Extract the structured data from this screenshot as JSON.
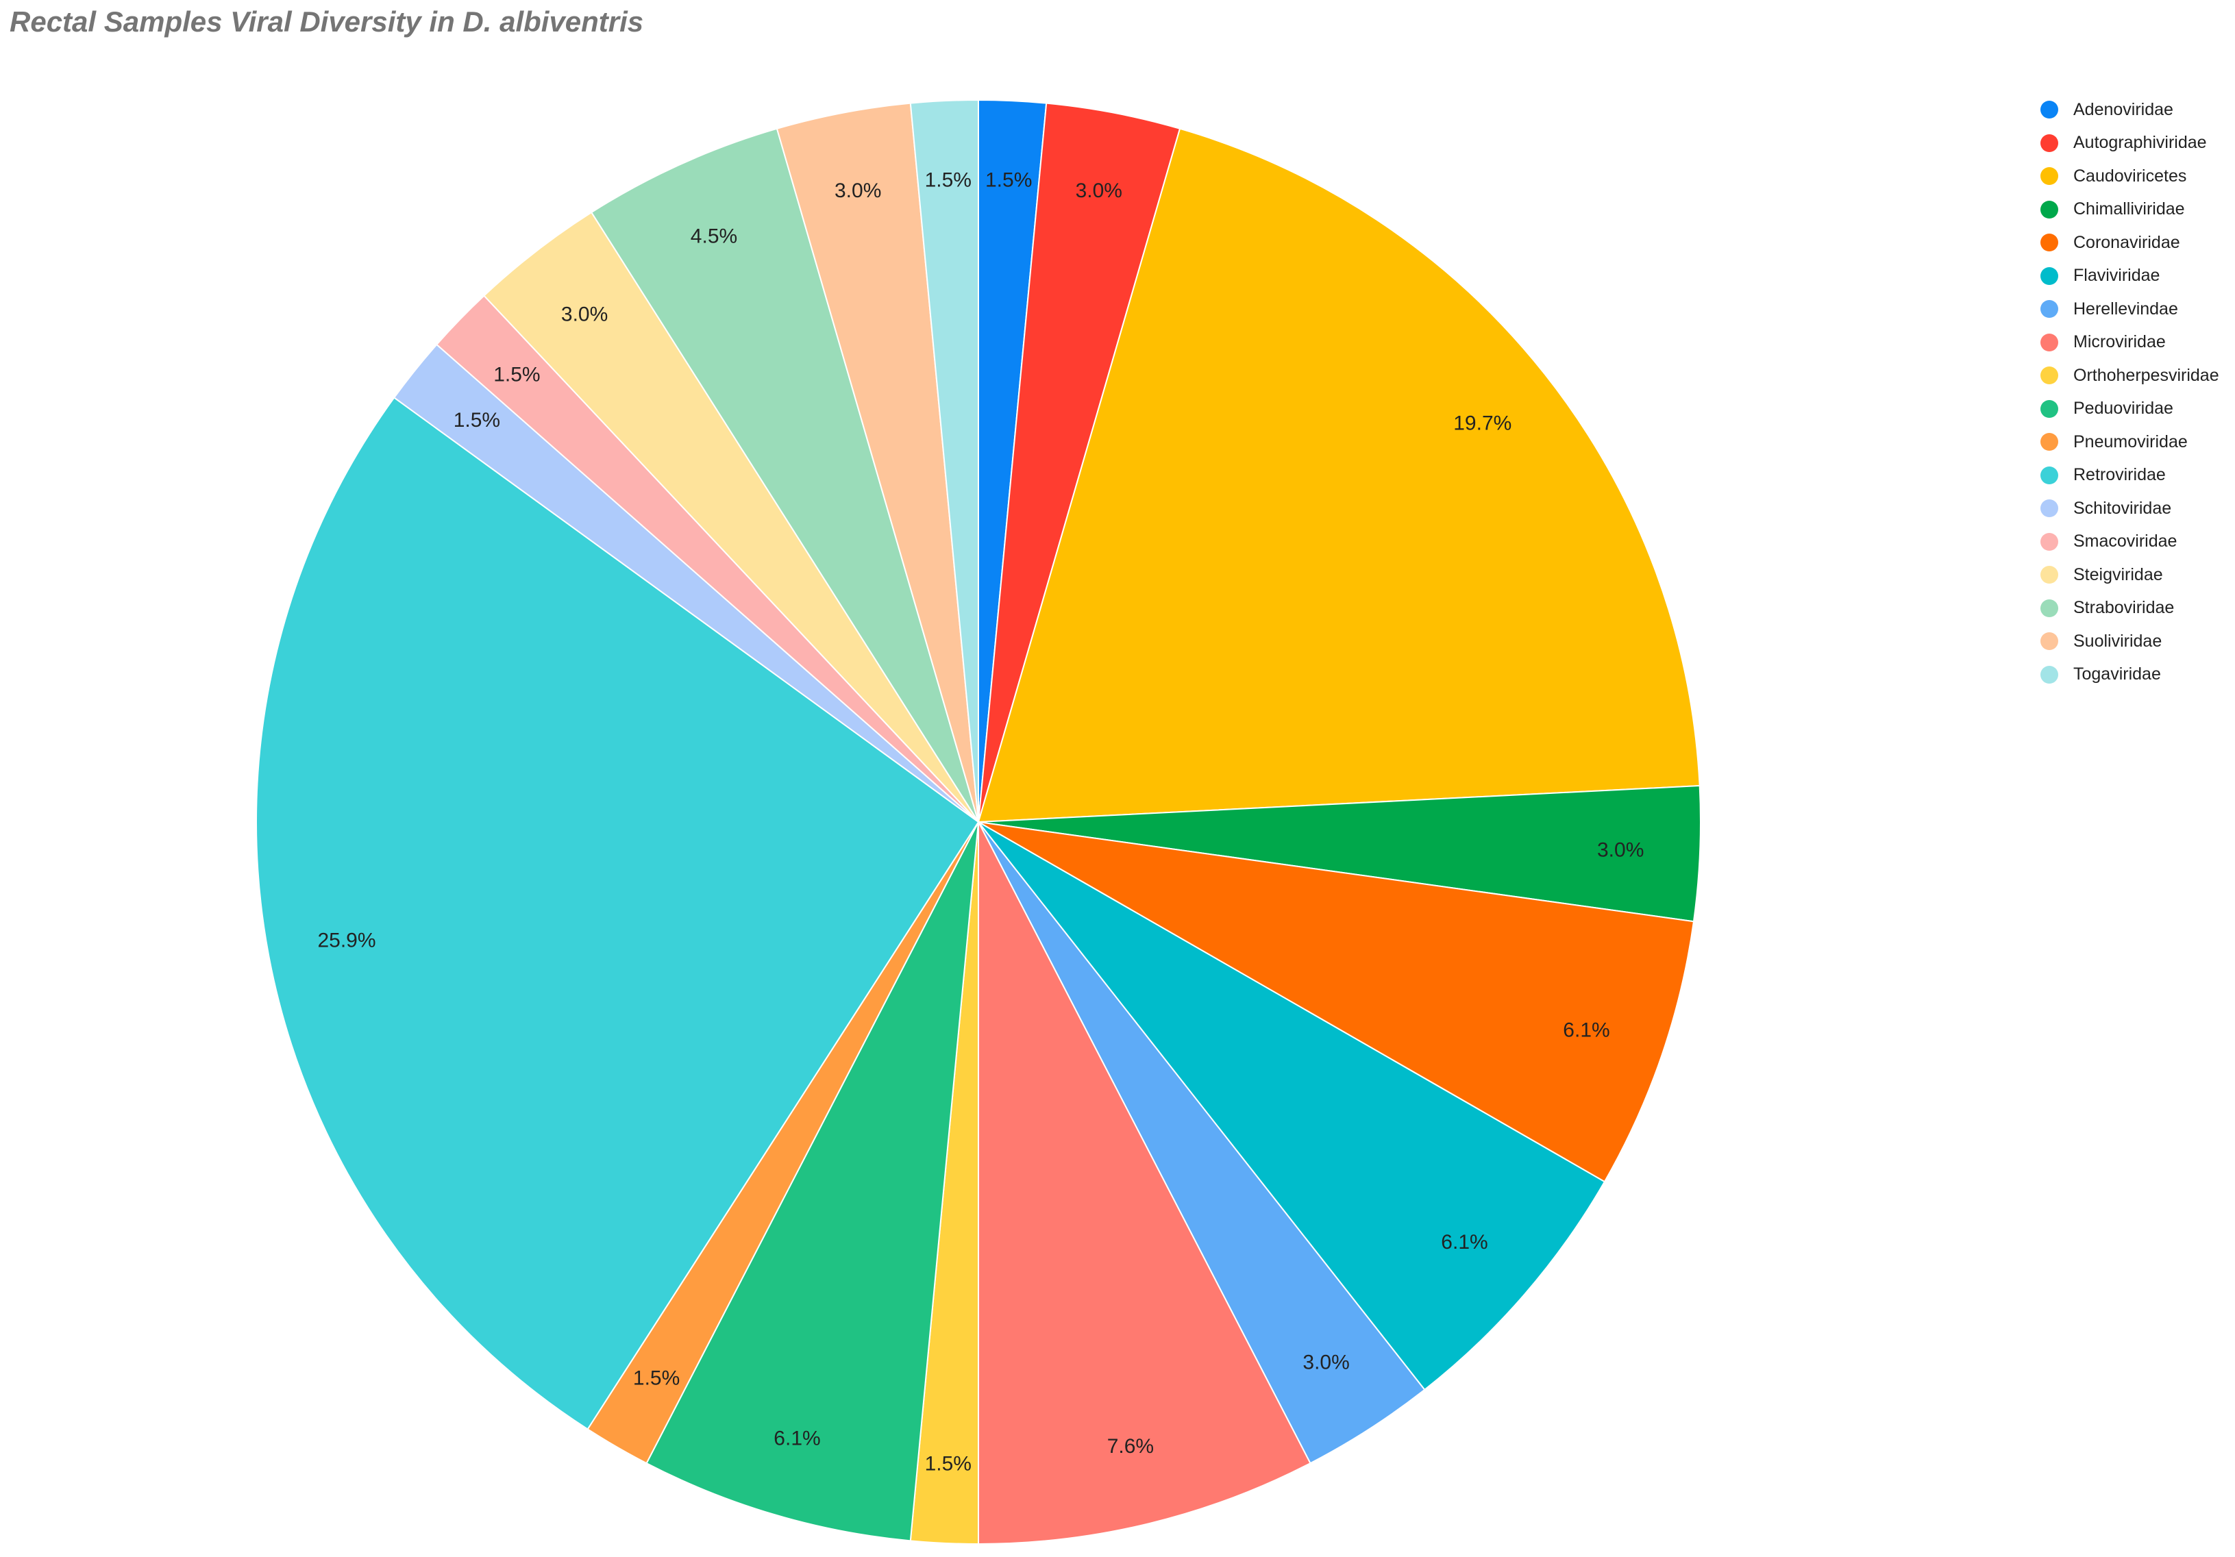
{
  "chart_data": {
    "type": "pie",
    "title": "Rectal Samples Viral Diversity in D. albiventris",
    "legend_position": "right",
    "slices": [
      {
        "label": "Adenoviridae",
        "value": 1.5,
        "color": "#0a84f5",
        "data_label": "1.5%"
      },
      {
        "label": "Autographiviridae",
        "value": 3.0,
        "color": "#ff3d30",
        "data_label": "3.0%"
      },
      {
        "label": "Caudoviricetes",
        "value": 19.7,
        "color": "#ffbf00",
        "data_label": "19.7%"
      },
      {
        "label": "Chimalliviridae",
        "value": 3.0,
        "color": "#00a84b",
        "data_label": "3.0%"
      },
      {
        "label": "Coronaviridae",
        "value": 6.1,
        "color": "#ff6d00",
        "data_label": "6.1%"
      },
      {
        "label": "Flaviviridae",
        "value": 6.1,
        "color": "#00bccb",
        "data_label": "6.1%"
      },
      {
        "label": "Herellevindae",
        "value": 3.0,
        "color": "#5eabf7",
        "data_label": "3.0%"
      },
      {
        "label": "Microviridae",
        "value": 7.6,
        "color": "#ff7a70",
        "data_label": "7.6%"
      },
      {
        "label": "Orthoherpesviridae",
        "value": 1.5,
        "color": "#ffd23f",
        "data_label": "1.5%"
      },
      {
        "label": "Peduoviridae",
        "value": 6.1,
        "color": "#20c283",
        "data_label": "6.1%"
      },
      {
        "label": "Pneumoviridae",
        "value": 1.5,
        "color": "#ff9c40",
        "data_label": "1.5%"
      },
      {
        "label": "Retroviridae",
        "value": 25.9,
        "color": "#3bd1d8",
        "data_label": "25.9%"
      },
      {
        "label": "Schitoviridae",
        "value": 1.5,
        "color": "#aecbfb",
        "data_label": "1.5%"
      },
      {
        "label": "Smacoviridae",
        "value": 1.5,
        "color": "#fdb2b0",
        "data_label": "1.5%"
      },
      {
        "label": "Steigviridae",
        "value": 3.0,
        "color": "#fee39b",
        "data_label": "3.0%"
      },
      {
        "label": "Straboviridae",
        "value": 4.5,
        "color": "#9adcb9",
        "data_label": "4.5%"
      },
      {
        "label": "Suoliviridae",
        "value": 3.0,
        "color": "#fec59a",
        "data_label": "3.0%"
      },
      {
        "label": "Togaviridae",
        "value": 1.5,
        "color": "#a2e4e7",
        "data_label": "1.5%"
      }
    ]
  }
}
